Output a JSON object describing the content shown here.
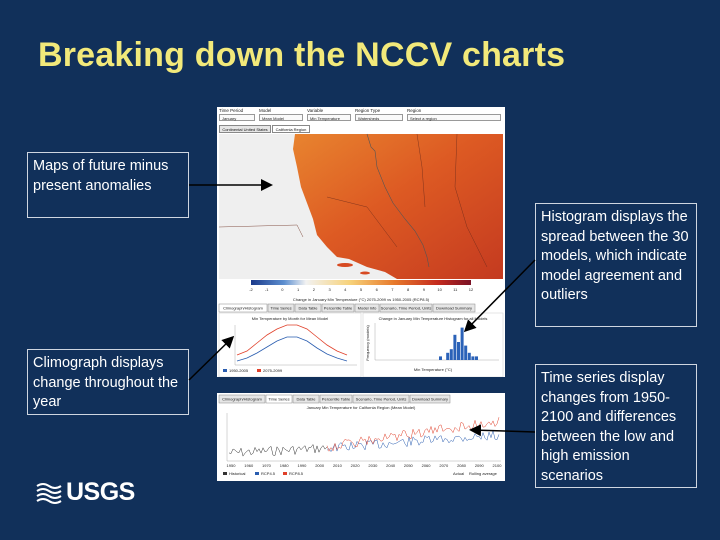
{
  "slide": {
    "title": "Breaking down the NCCV charts",
    "callouts": {
      "maps": "Maps of future minus present anomalies",
      "climograph": "Climograph displays change throughout the year",
      "histogram": "Histogram displays the spread between the 30 models, which indicate model agreement and outliers",
      "timeseries": "Time series display changes from 1950-2100 and differences between the low and high emission scenarios"
    },
    "logo_text": "USGS"
  },
  "controls": {
    "time_period_label": "Time Period",
    "time_period_value": "January",
    "model_label": "Model",
    "model_value": "Mean Model",
    "variable_label": "Variable",
    "variable_value": "Min Temperature",
    "region_type_label": "Region Type",
    "region_type_value": "Watersheds",
    "region_label": "Region",
    "region_value": "Select a region"
  },
  "map_tabs": [
    "Continental United States",
    "California Region"
  ],
  "map_legend": {
    "ticks": [
      "-2",
      "-1",
      "0",
      "1",
      "2",
      "3",
      "4",
      "5",
      "6",
      "7",
      "8",
      "9",
      "10",
      "11",
      "12"
    ],
    "caption": "Change in January Min Temperature (°C) 2075-2099 vs 1950-2005 (RCP8.5)"
  },
  "chart_tabs": [
    "Climograph/Histogram",
    "Time Series",
    "Data Table",
    "Percentile Table",
    "Model Info",
    "Scenario, Time Period, Units",
    "Download Summary"
  ],
  "climograph": {
    "title": "Min Temperature by Month for Mean Model",
    "legend": [
      "1950-2005",
      "2075-2099"
    ],
    "colors": {
      "baseline": "#2a5db0",
      "future": "#e0402a"
    }
  },
  "histogram": {
    "title": "Change in January Min Temperature Histogram for all Models",
    "xlabel": "Min Temperature (°C)",
    "ylabel": "Frequency (models)",
    "color": "#2b62b8"
  },
  "timeseries": {
    "tabs": [
      "Climograph/Histogram",
      "Time Series",
      "Data Table",
      "Percentile Table",
      "Scenario, Time Period, Units",
      "Download Summary"
    ],
    "title": "January Min Temperature for California Region (Mean Model)",
    "x_ticks": [
      "1950",
      "1960",
      "1970",
      "1980",
      "1990",
      "2000",
      "2010",
      "2020",
      "2030",
      "2040",
      "2050",
      "2060",
      "2070",
      "2080",
      "2090",
      "2100"
    ],
    "legend": [
      "Historical",
      "RCP4.5",
      "RCP8.5"
    ],
    "legend_right": [
      "Actual",
      "Rolling average"
    ],
    "colors": {
      "historical": "#333333",
      "rcp45": "#2a5db0",
      "rcp85": "#e0402a"
    }
  }
}
